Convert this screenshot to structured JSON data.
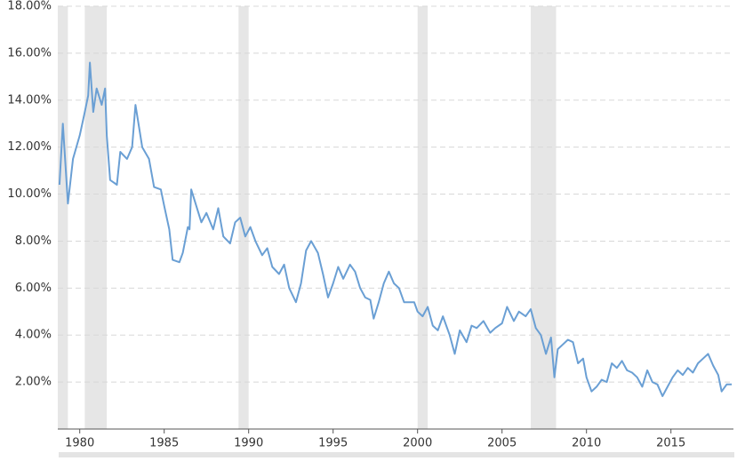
{
  "chart_data": {
    "type": "line",
    "x": [
      1978.8,
      1979.0,
      1979.3,
      1979.6,
      1980.0,
      1980.3,
      1980.5,
      1980.6,
      1980.8,
      1981.0,
      1981.3,
      1981.5,
      1981.6,
      1981.8,
      1982.2,
      1982.4,
      1982.8,
      1983.1,
      1983.3,
      1983.7,
      1984.1,
      1984.4,
      1984.8,
      1985.0,
      1985.3,
      1985.5,
      1985.9,
      1986.1,
      1986.4,
      1986.5,
      1986.6,
      1987.2,
      1987.5,
      1987.9,
      1988.2,
      1988.5,
      1988.9,
      1989.2,
      1989.5,
      1989.8,
      1990.1,
      1990.4,
      1990.8,
      1991.1,
      1991.4,
      1991.8,
      1992.1,
      1992.4,
      1992.8,
      1993.1,
      1993.4,
      1993.7,
      1994.1,
      1994.4,
      1994.7,
      1995.0,
      1995.3,
      1995.6,
      1996.0,
      1996.3,
      1996.6,
      1996.9,
      1997.2,
      1997.4,
      1997.7,
      1998.0,
      1998.3,
      1998.6,
      1998.9,
      1999.2,
      1999.5,
      1999.8,
      2000.0,
      2000.3,
      2000.6,
      2000.9,
      2001.2,
      2001.5,
      2001.9,
      2002.2,
      2002.5,
      2002.9,
      2003.2,
      2003.5,
      2003.9,
      2004.3,
      2004.6,
      2005.0,
      2005.3,
      2005.7,
      2006.0,
      2006.4,
      2006.7,
      2007.0,
      2007.3,
      2007.6,
      2007.9,
      2008.1,
      2008.3,
      2008.6,
      2008.9,
      2009.2,
      2009.5,
      2009.8,
      2010.0,
      2010.3,
      2010.6,
      2010.9,
      2011.2,
      2011.5,
      2011.8,
      2012.1,
      2012.4,
      2012.7,
      2013.0,
      2013.3,
      2013.6,
      2013.9,
      2014.2,
      2014.5,
      2014.8,
      2015.1,
      2015.4,
      2015.7,
      2016.0,
      2016.3,
      2016.6,
      2016.9,
      2017.2,
      2017.5,
      2017.8,
      2018.0,
      2018.3,
      2018.6
    ],
    "series": [
      {
        "color": "#6a9fd4",
        "values": [
          10.4,
          13.0,
          9.6,
          11.5,
          12.5,
          13.5,
          14.2,
          15.6,
          13.5,
          14.5,
          13.8,
          14.5,
          12.5,
          10.6,
          10.4,
          11.8,
          11.5,
          12.0,
          13.8,
          12.0,
          11.5,
          10.3,
          10.2,
          9.5,
          8.5,
          7.2,
          7.1,
          7.5,
          8.6,
          8.5,
          10.2,
          8.8,
          9.2,
          8.5,
          9.4,
          8.2,
          7.9,
          8.8,
          9.0,
          8.2,
          8.6,
          8.0,
          7.4,
          7.7,
          6.9,
          6.6,
          7.0,
          6.0,
          5.4,
          6.2,
          7.6,
          8.0,
          7.5,
          6.6,
          5.6,
          6.2,
          6.9,
          6.4,
          7.0,
          6.7,
          6.0,
          5.6,
          5.5,
          4.7,
          5.4,
          6.2,
          6.7,
          6.2,
          6.0,
          5.4,
          5.4,
          5.4,
          5.0,
          4.8,
          5.2,
          4.4,
          4.2,
          4.8,
          4.0,
          3.2,
          4.2,
          3.7,
          4.4,
          4.3,
          4.6,
          4.1,
          4.3,
          4.5,
          5.2,
          4.6,
          5.0,
          4.8,
          5.1,
          4.3,
          4.0,
          3.2,
          3.9,
          2.2,
          3.4,
          3.6,
          3.8,
          3.7,
          2.8,
          3.0,
          2.2,
          1.6,
          1.8,
          2.1,
          2.0,
          2.8,
          2.6,
          2.9,
          2.5,
          2.4,
          2.2,
          1.8,
          2.5,
          2.0,
          1.9,
          1.4,
          1.8,
          2.2,
          2.5,
          2.3,
          2.6,
          2.4,
          2.8,
          3.0,
          3.2,
          2.7,
          2.3,
          1.6,
          1.9,
          1.9
        ]
      }
    ],
    "shaded_ranges": [
      [
        1978.7,
        1979.3
      ],
      [
        1980.3,
        1981.6
      ],
      [
        1989.4,
        1990.0
      ],
      [
        2000.0,
        2000.6
      ],
      [
        2006.7,
        2008.2
      ]
    ],
    "xlim": [
      1978.7,
      2018.7
    ],
    "xticks": [
      1980,
      1985,
      1990,
      1995,
      2000,
      2005,
      2010,
      2015
    ],
    "ylim": [
      0,
      18
    ],
    "yticks": [
      {
        "value": 2,
        "label": "2.00%"
      },
      {
        "value": 4,
        "label": "4.00%"
      },
      {
        "value": 6,
        "label": "6.00%"
      },
      {
        "value": 8,
        "label": "8.00%"
      },
      {
        "value": 10,
        "label": "10.00%"
      },
      {
        "value": 12,
        "label": "12.00%"
      },
      {
        "value": 14,
        "label": "14.00%"
      },
      {
        "value": 16,
        "label": "16.00%"
      },
      {
        "value": 18,
        "label": "18.00%"
      }
    ],
    "grid": true
  }
}
